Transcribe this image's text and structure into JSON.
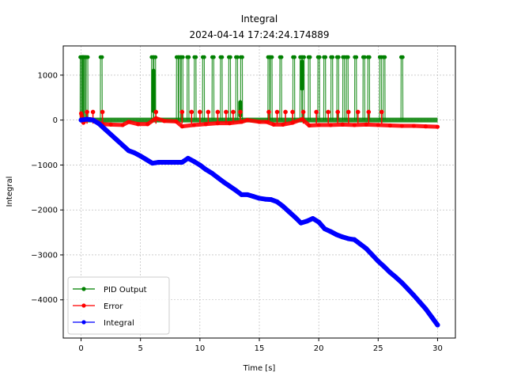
{
  "chart_data": {
    "type": "line",
    "title": "Integral",
    "subtitle": "2024-04-14 17:24:24.174889",
    "xlabel": "Time [s]",
    "ylabel": "Integral",
    "xlim": [
      -1.5,
      31.5
    ],
    "ylim": [
      -4850,
      1650
    ],
    "xticks": [
      0,
      5,
      10,
      15,
      20,
      25,
      30
    ],
    "xtick_labels": [
      "0",
      "5",
      "10",
      "15",
      "20",
      "25",
      "30"
    ],
    "yticks": [
      1000,
      0,
      -1000,
      -2000,
      -3000,
      -4000
    ],
    "ytick_labels": [
      "1000",
      "0",
      "−1000",
      "−2000",
      "−3000",
      "−4000"
    ],
    "grid": true,
    "legend_position": "lower-left",
    "series": [
      {
        "name": "PID Output",
        "color": "#008000",
        "baseline": 0,
        "spike_high": 1400,
        "spike_times": [
          0.0,
          0.1,
          0.2,
          0.3,
          0.5,
          1.7,
          6.0,
          6.2,
          8.1,
          8.3,
          8.5,
          9.0,
          9.6,
          10.3,
          11.1,
          11.8,
          12.5,
          13.1,
          13.5,
          15.8,
          16.0,
          16.8,
          17.9,
          18.5,
          18.7,
          19.2,
          20.0,
          20.5,
          21.1,
          21.6,
          22.1,
          22.4,
          23.1,
          23.8,
          24.2,
          25.2,
          25.5,
          27.0
        ],
        "clusters": [
          {
            "t": 6.1,
            "min": 200,
            "max": 1100
          },
          {
            "t": 13.4,
            "min": 100,
            "max": 400
          },
          {
            "t": 18.6,
            "min": 700,
            "max": 1300
          }
        ]
      },
      {
        "name": "Error",
        "color": "#ff0000",
        "x": [
          0.0,
          0.2,
          0.4,
          0.8,
          1.2,
          1.8,
          2.5,
          3.5,
          4.0,
          4.8,
          5.6,
          6.3,
          7.0,
          8.0,
          8.5,
          9.5,
          10.5,
          11.5,
          12.5,
          13.5,
          14.0,
          15.0,
          15.6,
          16.2,
          17.0,
          17.8,
          18.6,
          19.2,
          20.0,
          21.0,
          22.0,
          23.0,
          24.0,
          25.0,
          26.0,
          27.0,
          28.0,
          29.0,
          30.0
        ],
        "y": [
          150,
          -60,
          20,
          20,
          -20,
          -90,
          -100,
          -110,
          -40,
          -90,
          -90,
          40,
          -20,
          -30,
          -140,
          -110,
          -90,
          -70,
          -70,
          -40,
          0,
          -40,
          -40,
          -100,
          -100,
          -60,
          20,
          -120,
          -110,
          -110,
          -100,
          -110,
          -100,
          -110,
          -120,
          -130,
          -130,
          -140,
          -150
        ],
        "spike_times": [
          0.5,
          1.0,
          1.8,
          6.3,
          8.5,
          9.3,
          10.0,
          10.7,
          11.5,
          12.2,
          12.8,
          13.4,
          15.8,
          16.5,
          17.2,
          17.8,
          18.7,
          19.8,
          20.8,
          21.6,
          22.5,
          23.3,
          24.2,
          25.3
        ],
        "spike_high": 180
      },
      {
        "name": "Integral",
        "color": "#0000ff",
        "x": [
          0.0,
          0.5,
          1.0,
          1.5,
          2.0,
          2.5,
          3.0,
          3.5,
          4.0,
          4.5,
          5.0,
          5.5,
          6.0,
          6.5,
          7.0,
          7.5,
          8.0,
          8.5,
          9.0,
          9.5,
          10.0,
          10.5,
          11.0,
          11.5,
          12.0,
          12.5,
          13.0,
          13.5,
          14.0,
          14.5,
          15.0,
          15.5,
          16.0,
          16.5,
          17.0,
          17.5,
          18.0,
          18.5,
          19.0,
          19.5,
          20.0,
          20.5,
          21.0,
          21.5,
          22.0,
          22.5,
          23.0,
          23.5,
          24.0,
          24.5,
          25.0,
          25.5,
          26.0,
          26.5,
          27.0,
          27.5,
          28.0,
          28.5,
          29.0,
          29.5,
          30.0
        ],
        "y": [
          0,
          20,
          0,
          -80,
          -200,
          -320,
          -440,
          -560,
          -680,
          -730,
          -800,
          -880,
          -960,
          -940,
          -940,
          -940,
          -940,
          -940,
          -850,
          -920,
          -1000,
          -1100,
          -1180,
          -1280,
          -1380,
          -1470,
          -1560,
          -1660,
          -1660,
          -1700,
          -1740,
          -1760,
          -1770,
          -1820,
          -1920,
          -2040,
          -2160,
          -2290,
          -2250,
          -2190,
          -2270,
          -2420,
          -2480,
          -2550,
          -2600,
          -2640,
          -2660,
          -2760,
          -2860,
          -3000,
          -3140,
          -3260,
          -3390,
          -3500,
          -3620,
          -3760,
          -3900,
          -4050,
          -4200,
          -4380,
          -4560
        ]
      }
    ]
  }
}
